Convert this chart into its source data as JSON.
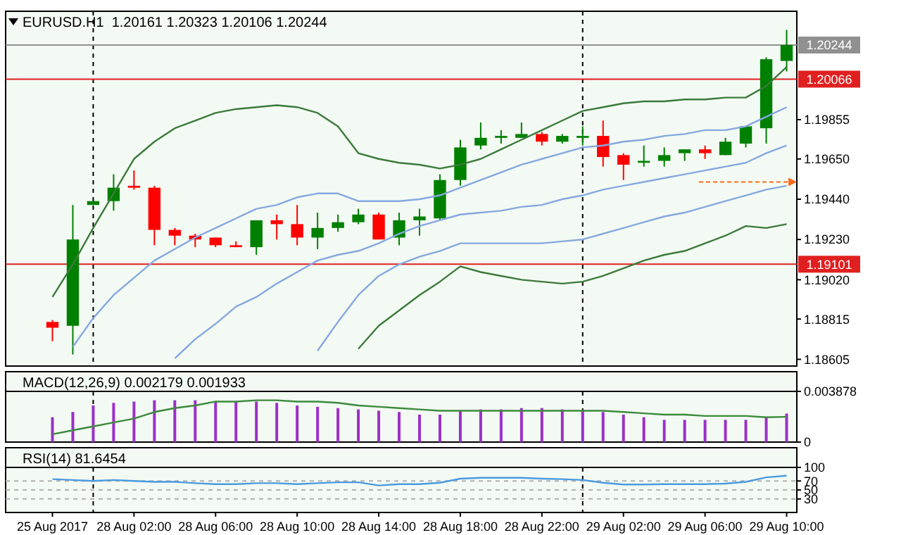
{
  "chart_data": [
    {
      "type": "candlestick",
      "title": "EURUSD.H1  1.20161 1.20323 1.20106 1.20244",
      "tick_labels": "y",
      "ylim": [
        1.1857,
        1.2042
      ],
      "yticks": [
        1.18605,
        1.18815,
        {
          "value": 1.1902,
          "label": "1.19020"
        },
        {
          "value": 1.1923,
          "label": "1.19230"
        },
        {
          "value": 1.1944,
          "label": "1.19440"
        },
        {
          "value": 1.1965,
          "label": "1.19650"
        },
        1.19855
      ],
      "series": [
        {
          "colors": [
            "#ff0000",
            "#008000",
            "#008000",
            "#008000",
            "#ff0000",
            "#ff0000",
            "#ff0000",
            "#ff0000",
            "#ff0000",
            "#ff0000",
            "#008000",
            "#ff0000",
            "#ff0000",
            "#008000",
            "#008000",
            "#008000",
            "#ff0000",
            "#008000",
            "#008000",
            "#008000",
            "#008000",
            "#008000",
            "#008000",
            "#008000",
            "#ff0000",
            "#008000",
            "#008000",
            "#ff0000",
            "#ff0000",
            "#008000",
            "#008000",
            "#008000",
            "#ff0000",
            "#008000",
            "#008000",
            "#008000",
            "#008000"
          ],
          "ohlc": [
            [
              1.188,
              1.1881,
              1.187,
              1.1877
            ],
            [
              1.1878,
              1.1941,
              1.1863,
              1.1923
            ],
            [
              1.1941,
              1.1943,
              1.1941,
              1.1943
            ],
            [
              1.1943,
              1.1957,
              1.1938,
              1.195
            ],
            [
              1.1951,
              1.1959,
              1.1949,
              1.195
            ],
            [
              1.195,
              1.1951,
              1.192,
              1.1928
            ],
            [
              1.1928,
              1.1929,
              1.192,
              1.1925
            ],
            [
              1.1925,
              1.1926,
              1.1919,
              1.1923
            ],
            [
              1.1924,
              1.1924,
              1.1919,
              1.192
            ],
            [
              1.192,
              1.1922,
              1.1919,
              1.1919
            ],
            [
              1.1919,
              1.1933,
              1.1915,
              1.1933
            ],
            [
              1.1933,
              1.1936,
              1.1923,
              1.1931
            ],
            [
              1.1931,
              1.1941,
              1.192,
              1.1924
            ],
            [
              1.1924,
              1.1937,
              1.1918,
              1.1929
            ],
            [
              1.1929,
              1.1936,
              1.1927,
              1.1932
            ],
            [
              1.1932,
              1.1939,
              1.1931,
              1.1936
            ],
            [
              1.1936,
              1.1937,
              1.1923,
              1.1923
            ],
            [
              1.1924,
              1.1937,
              1.192,
              1.1933
            ],
            [
              1.1933,
              1.1939,
              1.1925,
              1.1935
            ],
            [
              1.1934,
              1.1957,
              1.1933,
              1.1954
            ],
            [
              1.1954,
              1.1975,
              1.1951,
              1.1971
            ],
            [
              1.1972,
              1.1984,
              1.197,
              1.1976
            ],
            [
              1.1976,
              1.198,
              1.1973,
              1.1977
            ],
            [
              1.1976,
              1.1984,
              1.1976,
              1.1978
            ],
            [
              1.1978,
              1.1979,
              1.1972,
              1.1974
            ],
            [
              1.1974,
              1.1978,
              1.1973,
              1.1977
            ],
            [
              1.1976,
              1.1982,
              1.1972,
              1.1977
            ],
            [
              1.1977,
              1.1985,
              1.1961,
              1.1966
            ],
            [
              1.1967,
              1.1968,
              1.1954,
              1.1962
            ],
            [
              1.1963,
              1.1972,
              1.1961,
              1.1964
            ],
            [
              1.1964,
              1.1971,
              1.1961,
              1.1967
            ],
            [
              1.1968,
              1.197,
              1.1964,
              1.197
            ],
            [
              1.197,
              1.1972,
              1.1965,
              1.1968
            ],
            [
              1.1967,
              1.1976,
              1.1967,
              1.1974
            ],
            [
              1.1973,
              1.1982,
              1.1971,
              1.1982
            ],
            [
              1.1981,
              1.2018,
              1.1973,
              1.2017
            ],
            [
              1.20161,
              1.20323,
              1.20106,
              1.20244
            ]
          ]
        },
        {
          "type": "line",
          "color": "#3c7a3c",
          "values": [
            1.1893,
            1.191,
            1.1929,
            1.1947,
            1.1965,
            1.1974,
            1.1981,
            1.1985,
            1.1989,
            1.1991,
            1.1992,
            1.1993,
            1.1992,
            1.1989,
            1.1982,
            1.1968,
            1.1965,
            1.1963,
            1.1962,
            1.196,
            1.1962,
            1.1965,
            1.197,
            1.1975,
            1.198,
            1.1985,
            1.199,
            1.1992,
            1.1994,
            1.1995,
            1.1995,
            1.1996,
            1.1996,
            1.1997,
            1.1997,
            1.2003,
            1.2013
          ]
        },
        {
          "type": "line",
          "color": "#86a8e0",
          "values": [
            null,
            1.1867,
            1.1882,
            1.1894,
            1.1903,
            1.1912,
            1.1918,
            1.1924,
            1.1929,
            1.1934,
            1.1939,
            1.1941,
            1.1945,
            1.1947,
            1.1947,
            1.1943,
            1.1943,
            1.1943,
            1.1944,
            1.1946,
            1.195,
            1.1954,
            1.1958,
            1.1962,
            1.1965,
            1.1968,
            1.1971,
            1.1972,
            1.1974,
            1.1975,
            1.1977,
            1.1978,
            1.198,
            1.198,
            1.1982,
            1.1987,
            1.1992
          ]
        },
        {
          "type": "line",
          "color": "#86a8e0",
          "values": [
            null,
            null,
            null,
            null,
            null,
            null,
            1.1861,
            1.1871,
            1.1879,
            1.1888,
            1.1893,
            1.19,
            1.1906,
            1.1912,
            1.1915,
            1.1917,
            1.1921,
            1.1926,
            1.193,
            1.1933,
            1.1936,
            1.1937,
            1.1938,
            1.194,
            1.1941,
            1.1944,
            1.1946,
            1.1949,
            1.1951,
            1.1953,
            1.1955,
            1.1957,
            1.1959,
            1.1961,
            1.1963,
            1.1968,
            1.1972
          ]
        },
        {
          "type": "line",
          "color": "#86a8e0",
          "values": [
            null,
            null,
            null,
            null,
            null,
            null,
            null,
            null,
            null,
            null,
            null,
            null,
            null,
            1.1865,
            1.188,
            1.1894,
            1.1904,
            1.191,
            1.1914,
            1.1917,
            1.1921,
            1.1921,
            1.1921,
            1.1921,
            1.1921,
            1.1922,
            1.1923,
            1.1926,
            1.1929,
            1.1932,
            1.1935,
            1.1937,
            1.194,
            1.1943,
            1.1946,
            1.1949,
            1.1951
          ]
        },
        {
          "type": "line",
          "color": "#3c7a3c",
          "values": [
            null,
            null,
            null,
            null,
            null,
            null,
            null,
            null,
            null,
            null,
            null,
            null,
            null,
            null,
            null,
            1.1866,
            1.1878,
            1.1886,
            1.1894,
            1.1901,
            1.1909,
            1.1906,
            1.1904,
            1.1902,
            1.1901,
            1.19,
            1.1901,
            1.1904,
            1.1908,
            1.1912,
            1.1915,
            1.1917,
            1.1921,
            1.1925,
            1.193,
            1.1929,
            1.1931
          ]
        }
      ],
      "ref_lines": [
        {
          "axis": "y",
          "value": 1.20244,
          "label": "1.20244",
          "color": "#909090",
          "line_style": "solid"
        },
        {
          "axis": "y",
          "value": 1.20066,
          "label": "1.20066",
          "color": "#e02020",
          "line_style": "solid"
        },
        {
          "axis": "y",
          "value": 1.19101,
          "label": "1.19101",
          "color": "#e02020",
          "line_style": "solid"
        }
      ]
    },
    {
      "type": "bar",
      "title": "MACD(12,26,9) 0.002179 0.001933",
      "tick_labels": "y",
      "ylim": [
        0,
        0.003878
      ],
      "yticks": [
        0,
        0.003878
      ],
      "series": [
        {
          "color": "#9b30c8",
          "values": [
            0.0019,
            0.0023,
            0.0028,
            0.003,
            0.0031,
            0.0032,
            0.0032,
            0.0032,
            0.0031,
            0.0031,
            0.0031,
            0.003,
            0.0028,
            0.0027,
            0.0026,
            0.0025,
            0.0024,
            0.0023,
            0.0021,
            0.0021,
            0.0024,
            0.0025,
            0.0025,
            0.0026,
            0.0026,
            0.0025,
            0.0024,
            0.0023,
            0.0021,
            0.0019,
            0.0017,
            0.0017,
            0.0017,
            0.0017,
            0.0017,
            0.0019,
            0.002179
          ]
        },
        {
          "type": "line",
          "color": "#3c8a3c",
          "values": [
            0.0006,
            0.0009,
            0.0012,
            0.0015,
            0.0018,
            0.0023,
            0.0026,
            0.0028,
            0.0031,
            0.0031,
            0.0032,
            0.0032,
            0.0031,
            0.0031,
            0.003,
            0.0028,
            0.0027,
            0.0026,
            0.0025,
            0.0024,
            0.0024,
            0.0024,
            0.0024,
            0.0024,
            0.0024,
            0.0024,
            0.0024,
            0.0024,
            0.0023,
            0.0022,
            0.0021,
            0.0021,
            0.002,
            0.002,
            0.002,
            0.0019,
            0.001933
          ]
        }
      ]
    },
    {
      "type": "line",
      "title": "RSI(14) 81.6454",
      "categories": [
        "25 Aug 2017",
        null,
        null,
        null,
        "28 Aug 02:00",
        null,
        null,
        null,
        "28 Aug 06:00",
        null,
        null,
        null,
        "28 Aug 10:00",
        null,
        null,
        null,
        "28 Aug 14:00",
        null,
        null,
        null,
        "28 Aug 18:00",
        null,
        null,
        null,
        "28 Aug 22:00",
        null,
        null,
        null,
        "29 Aug 02:00",
        null,
        null,
        null,
        "29 Aug 06:00",
        null,
        null,
        null,
        "29 Aug 10:00"
      ],
      "ylim": [
        0,
        100
      ],
      "yticks": [
        30,
        50,
        70,
        100
      ],
      "series": [
        {
          "color": "#4a9ae0",
          "values": [
            74,
            72,
            70,
            72,
            70,
            68,
            68,
            65,
            63,
            63,
            65,
            65,
            63,
            65,
            67,
            67,
            60,
            63,
            63,
            66,
            75,
            77,
            77,
            77,
            75,
            74,
            72,
            66,
            62,
            62,
            63,
            63,
            63,
            64,
            68,
            78,
            81.6454
          ]
        }
      ],
      "ref_lines": [
        {
          "axis": "y",
          "value": 70,
          "color": "#b0b0b0",
          "line_style": "dashed"
        },
        {
          "axis": "y",
          "value": 50,
          "color": "#b0b0b0",
          "line_style": "dashed"
        },
        {
          "axis": "y",
          "value": 30,
          "color": "#b0b0b0",
          "line_style": "dashed"
        }
      ]
    }
  ]
}
